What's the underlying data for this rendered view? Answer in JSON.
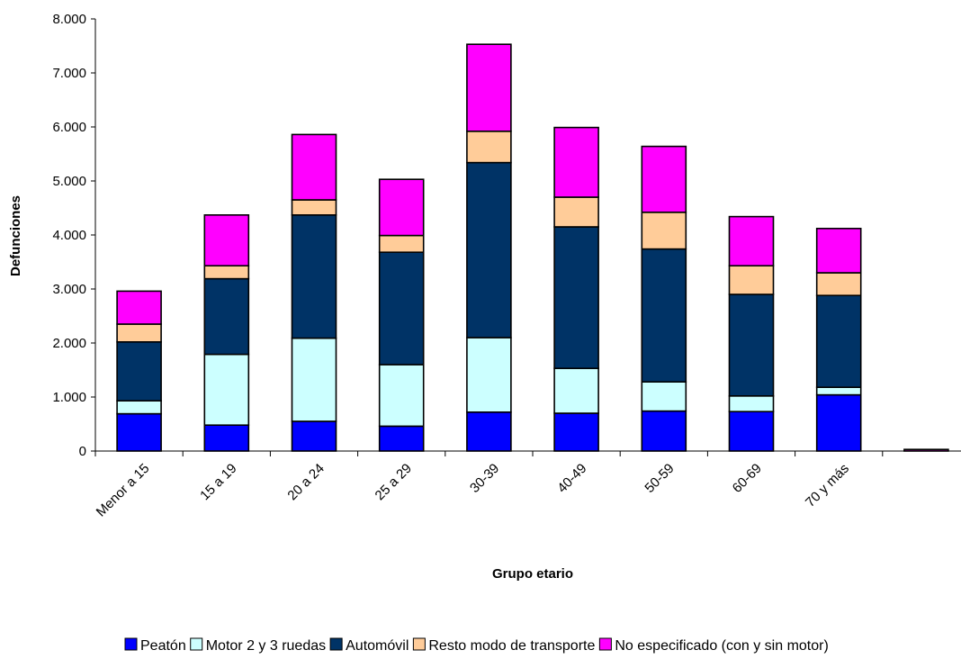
{
  "chart_data": {
    "type": "bar",
    "stacked": true,
    "categories": [
      "Menor a 15",
      "15 a 19",
      "20 a 24",
      "25 a 29",
      "30-39",
      "40-49",
      "50-59",
      "60-69",
      "70 y más",
      ""
    ],
    "series": [
      {
        "name": "Peatón",
        "color": "#0000ff",
        "values": [
          690,
          480,
          550,
          460,
          720,
          700,
          740,
          730,
          1040,
          0
        ]
      },
      {
        "name": "Motor 2 y 3 ruedas",
        "color": "#ccffff",
        "values": [
          240,
          1310,
          1540,
          1140,
          1380,
          830,
          540,
          290,
          140,
          0
        ]
      },
      {
        "name": "Automóvil",
        "color": "#003366",
        "values": [
          1090,
          1400,
          2280,
          2080,
          3240,
          2620,
          2460,
          1880,
          1700,
          0
        ]
      },
      {
        "name": "Resto modo de transporte",
        "color": "#ffcc99",
        "values": [
          330,
          240,
          280,
          310,
          580,
          550,
          680,
          530,
          420,
          0
        ]
      },
      {
        "name": "No especificado (con y sin motor)",
        "color": "#ff00ff",
        "values": [
          610,
          940,
          1210,
          1040,
          1610,
          1290,
          1220,
          910,
          820,
          30
        ]
      }
    ],
    "xlabel": "Grupo etario",
    "ylabel": "Defunciones",
    "ylim": [
      0,
      8000
    ],
    "yticks": [
      {
        "value": 0,
        "label": "0"
      },
      {
        "value": 1000,
        "label": "1.000"
      },
      {
        "value": 2000,
        "label": "2.000"
      },
      {
        "value": 3000,
        "label": "3.000"
      },
      {
        "value": 4000,
        "label": "4.000"
      },
      {
        "value": 5000,
        "label": "5.000"
      },
      {
        "value": 6000,
        "label": "6.000"
      },
      {
        "value": 7000,
        "label": "7.000"
      },
      {
        "value": 8000,
        "label": "8.000"
      }
    ],
    "grid": false,
    "legend_position": "bottom"
  }
}
